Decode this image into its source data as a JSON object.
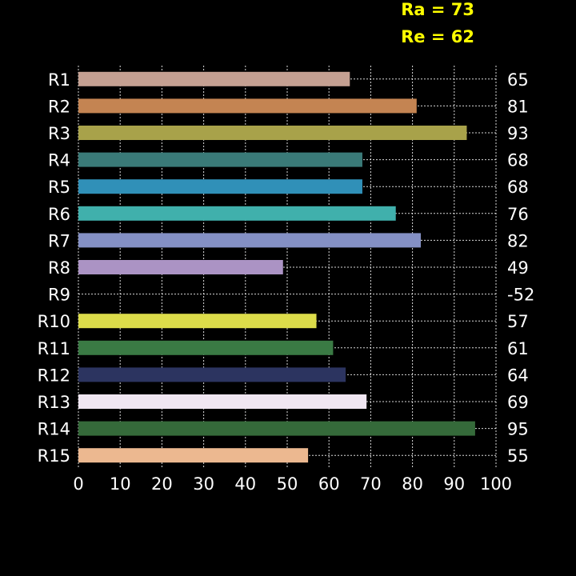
{
  "summary": {
    "ra": "Ra = 73",
    "re": "Re = 62"
  },
  "chart_data": {
    "type": "bar",
    "orientation": "horizontal",
    "categories": [
      "R1",
      "R2",
      "R3",
      "R4",
      "R5",
      "R6",
      "R7",
      "R8",
      "R9",
      "R10",
      "R11",
      "R12",
      "R13",
      "R14",
      "R15"
    ],
    "values": [
      65,
      81,
      93,
      68,
      68,
      76,
      82,
      49,
      -52,
      57,
      61,
      64,
      69,
      95,
      55
    ],
    "value_labels": [
      "65",
      "81",
      "93",
      "68",
      "68",
      "76",
      "82",
      "49",
      "-52",
      "57",
      "61",
      "64",
      "69",
      "95",
      "55"
    ],
    "colors": [
      "#c4a092",
      "#c48452",
      "#a8a24a",
      "#3a7a78",
      "#3090b8",
      "#40b0ac",
      "#8490c4",
      "#ab93c4",
      "#000000",
      "#dcdc4a",
      "#3a7a44",
      "#2c3460",
      "#f0e6f2",
      "#356a3a",
      "#ecb890"
    ],
    "xlim": [
      0,
      100
    ],
    "xticks": [
      "0",
      "10",
      "20",
      "30",
      "40",
      "50",
      "60",
      "70",
      "80",
      "90",
      "100"
    ],
    "grid": true,
    "title": "",
    "xlabel": "",
    "ylabel": ""
  }
}
